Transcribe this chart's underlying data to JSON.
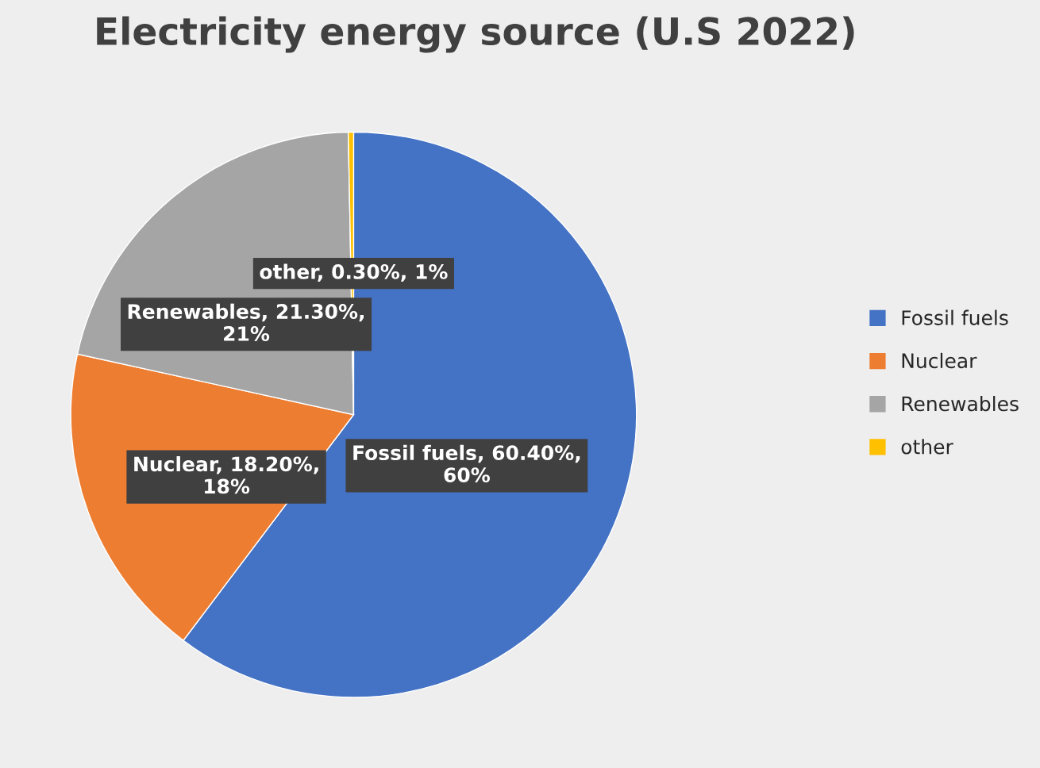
{
  "chart_data": {
    "type": "pie",
    "title": "Electricity energy source (U.S 2022)",
    "categories": [
      "Fossil fuels",
      "Nuclear",
      "Renewables",
      "other"
    ],
    "values": [
      60.4,
      18.2,
      21.3,
      0.3
    ],
    "value_labels": [
      "Fossil fuels, 60.40%, 60%",
      "Nuclear, 18.20%, 18%",
      "Renewables, 21.30%, 21%",
      "other, 0.30%, 1%"
    ],
    "colors": [
      "#4472c4",
      "#ed7d31",
      "#a5a5a5",
      "#ffc000"
    ],
    "legend": "right"
  }
}
